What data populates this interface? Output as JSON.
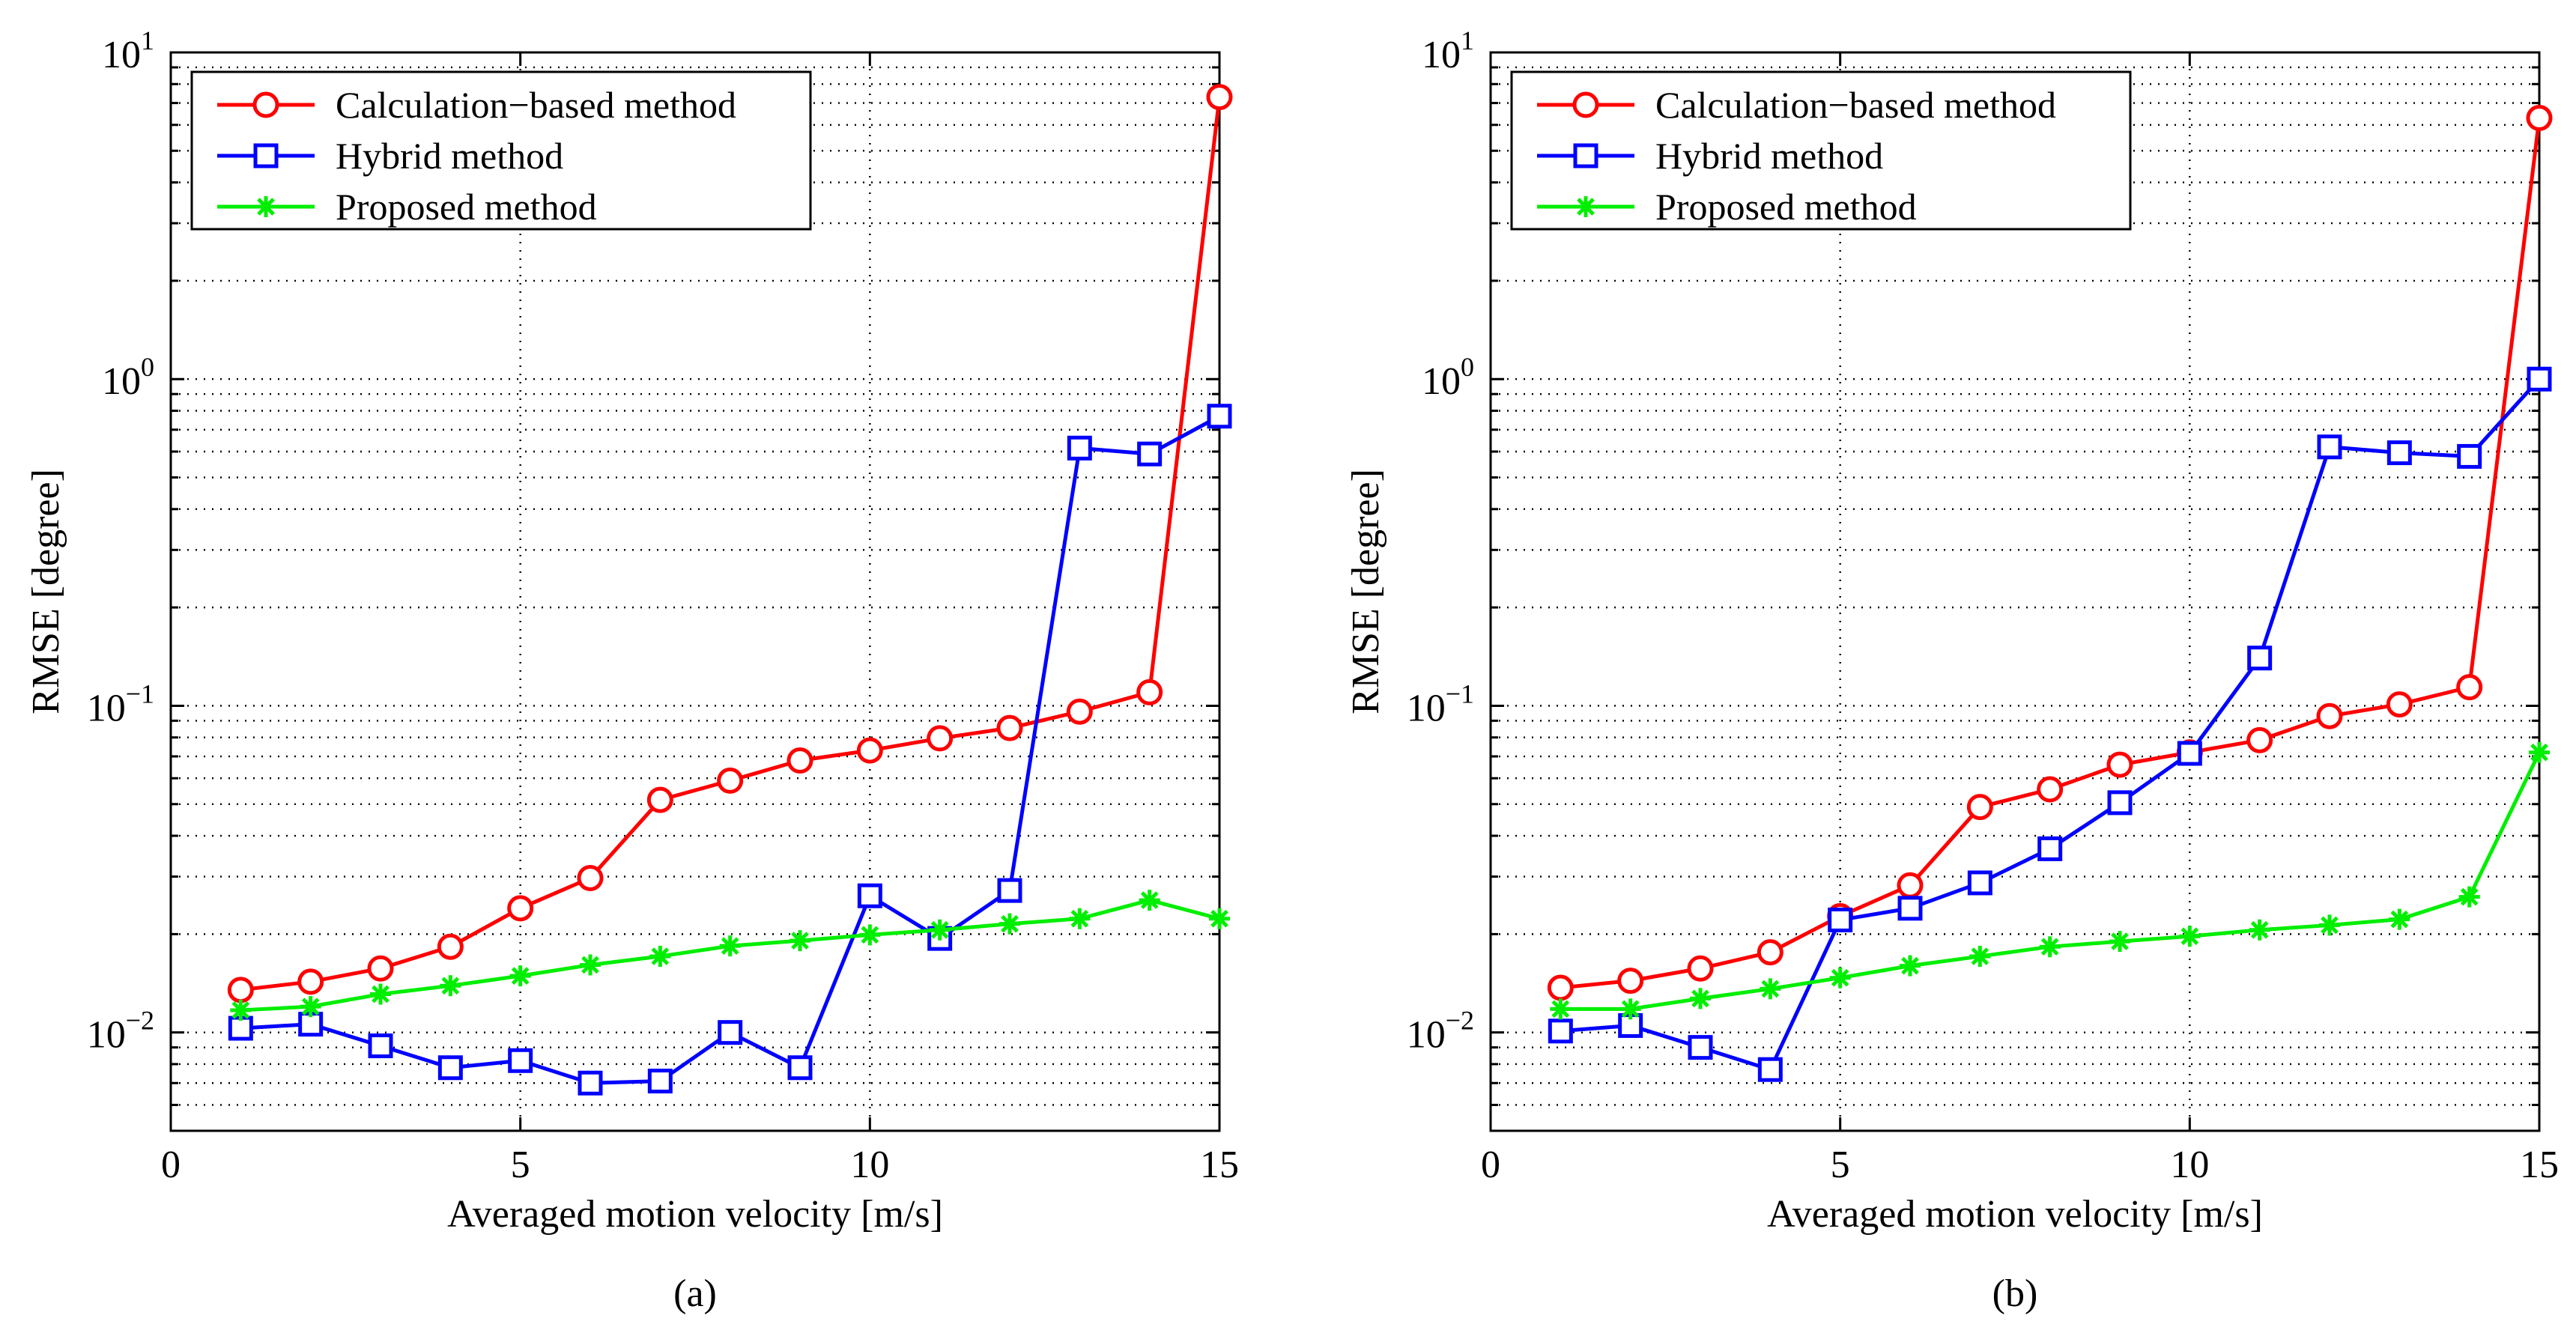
{
  "chart_data": [
    {
      "type": "line",
      "panel_label": "(a)",
      "xlabel": "Averaged motion velocity [m/s]",
      "ylabel": "RMSE [degree]",
      "xlim": [
        0,
        15
      ],
      "ylim": [
        0.005,
        10
      ],
      "yscale": "log",
      "xticks": [
        0,
        5,
        10,
        15
      ],
      "xtick_labels": [
        "0",
        "5",
        "10",
        "15"
      ],
      "ytick_labels": [
        {
          "base": "10",
          "exp": "1",
          "value": 10
        },
        {
          "base": "10",
          "exp": "0",
          "value": 1
        },
        {
          "base": "10",
          "exp": "−1",
          "value": 0.1
        },
        {
          "base": "10",
          "exp": "−2",
          "value": 0.01
        }
      ],
      "grid": true,
      "legend_position": "top-left",
      "x": [
        1,
        2,
        3,
        4,
        5,
        6,
        7,
        8,
        9,
        10,
        11,
        12,
        13,
        14,
        15
      ],
      "series": [
        {
          "name": "Calculation−based method",
          "color": "#ff0000",
          "marker": "circle",
          "values": [
            0.0135,
            0.0143,
            0.0157,
            0.0183,
            0.024,
            0.0297,
            0.0515,
            0.059,
            0.068,
            0.073,
            0.0795,
            0.0855,
            0.096,
            0.11,
            7.3
          ]
        },
        {
          "name": "Hybrid method",
          "color": "#0000ff",
          "marker": "square",
          "values": [
            0.0103,
            0.0106,
            0.0091,
            0.0078,
            0.0082,
            0.007,
            0.0071,
            0.01,
            0.0078,
            0.0262,
            0.0194,
            0.0272,
            0.615,
            0.59,
            0.77
          ]
        },
        {
          "name": "Proposed method",
          "color": "#00ee00",
          "marker": "asterisk",
          "values": [
            0.0117,
            0.012,
            0.0131,
            0.0139,
            0.0149,
            0.0161,
            0.0171,
            0.0184,
            0.0191,
            0.0199,
            0.0206,
            0.0215,
            0.0223,
            0.0254,
            0.0223
          ]
        }
      ]
    },
    {
      "type": "line",
      "panel_label": "(b)",
      "xlabel": "Averaged motion velocity [m/s]",
      "ylabel": "RMSE [degree]",
      "xlim": [
        0,
        15
      ],
      "ylim": [
        0.005,
        10
      ],
      "yscale": "log",
      "xticks": [
        0,
        5,
        10,
        15
      ],
      "xtick_labels": [
        "0",
        "5",
        "10",
        "15"
      ],
      "ytick_labels": [
        {
          "base": "10",
          "exp": "1",
          "value": 10
        },
        {
          "base": "10",
          "exp": "0",
          "value": 1
        },
        {
          "base": "10",
          "exp": "−1",
          "value": 0.1
        },
        {
          "base": "10",
          "exp": "−2",
          "value": 0.01
        }
      ],
      "grid": true,
      "legend_position": "top-left",
      "x": [
        1,
        2,
        3,
        4,
        5,
        6,
        7,
        8,
        9,
        10,
        11,
        12,
        13,
        14,
        15
      ],
      "series": [
        {
          "name": "Calculation−based method",
          "color": "#ff0000",
          "marker": "circle",
          "values": [
            0.0137,
            0.0144,
            0.0157,
            0.0176,
            0.0227,
            0.0282,
            0.049,
            0.0555,
            0.066,
            0.072,
            0.0785,
            0.093,
            0.101,
            0.114,
            6.3
          ]
        },
        {
          "name": "Hybrid method",
          "color": "#0000ff",
          "marker": "square",
          "values": [
            0.0101,
            0.0105,
            0.009,
            0.0077,
            0.0221,
            0.024,
            0.0287,
            0.0365,
            0.0505,
            0.0715,
            0.14,
            0.62,
            0.595,
            0.58,
            1.0
          ]
        },
        {
          "name": "Proposed method",
          "color": "#00ee00",
          "marker": "asterisk",
          "values": [
            0.0118,
            0.0118,
            0.0127,
            0.0136,
            0.0147,
            0.016,
            0.0171,
            0.0183,
            0.019,
            0.0197,
            0.0206,
            0.0213,
            0.0222,
            0.026,
            0.072
          ]
        }
      ]
    }
  ]
}
